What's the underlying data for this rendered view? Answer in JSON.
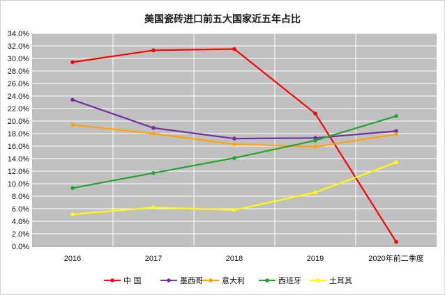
{
  "chart_data": {
    "type": "line",
    "title": "美国瓷砖进口前五大国家近五年占比",
    "xlabel": "",
    "ylabel": "",
    "categories": [
      "2016",
      "2017",
      "2018",
      "2019",
      "2020年前二季度"
    ],
    "ylim": [
      0,
      34
    ],
    "ytick_step": 2,
    "ytick_labels": [
      "0.0%",
      "2.0%",
      "4.0%",
      "6.0%",
      "8.0%",
      "10.0%",
      "12.0%",
      "14.0%",
      "16.0%",
      "18.0%",
      "20.0%",
      "22.0%",
      "24.0%",
      "26.0%",
      "28.0%",
      "30.0%",
      "32.0%",
      "34.0%"
    ],
    "grid": true,
    "plot_background": "#c0c0c0",
    "grid_color": "#ffffff",
    "legend_position": "bottom",
    "series": [
      {
        "name": "中 国",
        "color": "#ff0000",
        "values": [
          29.4,
          31.3,
          31.5,
          21.2,
          0.7
        ]
      },
      {
        "name": "墨西哥",
        "color": "#7030a0",
        "values": [
          23.4,
          18.9,
          17.2,
          17.3,
          18.4
        ]
      },
      {
        "name": "意大利",
        "color": "#ffa500",
        "values": [
          19.4,
          18.0,
          16.3,
          15.9,
          17.9
        ]
      },
      {
        "name": "西班牙",
        "color": "#27a12e",
        "values": [
          9.3,
          11.7,
          14.1,
          16.9,
          20.8
        ]
      },
      {
        "name": "土耳其",
        "color": "#ffff00",
        "values": [
          5.1,
          6.2,
          5.8,
          8.6,
          13.4
        ]
      }
    ]
  }
}
